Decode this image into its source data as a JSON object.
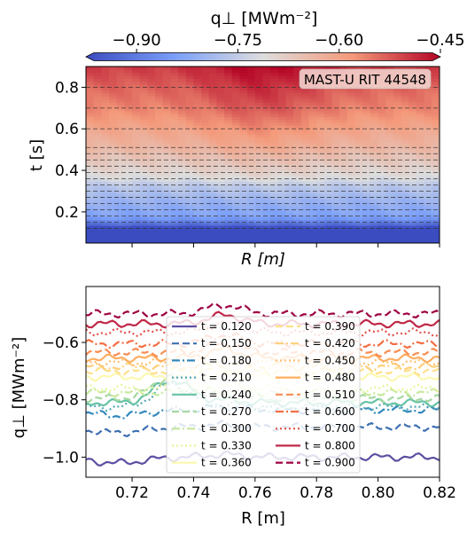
{
  "colorbar": {
    "label": "q⊥ [MWm⁻²]",
    "ticks": [
      "−0.90",
      "−0.75",
      "−0.60",
      "−0.45"
    ],
    "tick_values": [
      -0.9,
      -0.75,
      -0.6,
      -0.45
    ],
    "range": [
      -0.975,
      -0.45
    ],
    "colormap": "coolwarm",
    "extend": "both"
  },
  "chart_data": [
    {
      "type": "heatmap",
      "annotation": "MAST-U RIT 44548",
      "xlabel": "R [m]",
      "ylabel": "t [s]",
      "xlim": [
        0.705,
        0.82
      ],
      "ylim": [
        0.05,
        0.9
      ],
      "yticks": [
        0.2,
        0.4,
        0.6,
        0.8
      ],
      "ytick_labels": [
        "0.2",
        "0.4",
        "0.6",
        "0.8"
      ],
      "xticks": [
        0.72,
        0.74,
        0.76,
        0.78,
        0.8,
        0.82
      ],
      "dashed_time_lines": [
        0.12,
        0.15,
        0.18,
        0.21,
        0.24,
        0.27,
        0.3,
        0.33,
        0.36,
        0.39,
        0.42,
        0.45,
        0.48,
        0.51,
        0.6,
        0.7,
        0.8,
        0.9
      ]
    },
    {
      "type": "line",
      "xlabel": "R [m]",
      "ylabel": "q⊥ [MWm⁻²]",
      "xlim": [
        0.705,
        0.82
      ],
      "ylim": [
        -1.07,
        -0.405
      ],
      "xticks": [
        0.72,
        0.74,
        0.76,
        0.78,
        0.8,
        0.82
      ],
      "xtick_labels": [
        "0.72",
        "0.74",
        "0.76",
        "0.78",
        "0.80",
        "0.82"
      ],
      "yticks": [
        -1.0,
        -0.8,
        -0.6
      ],
      "ytick_labels": [
        "−1.0",
        "−0.8",
        "−0.6"
      ],
      "legend_position": "lower-center",
      "series": [
        {
          "name": "t = 0.120",
          "t": 0.12,
          "color": "#5e4fa2",
          "dash": "solid",
          "base": -1.0
        },
        {
          "name": "t = 0.150",
          "t": 0.15,
          "color": "#3d6fb0",
          "dash": "dashed",
          "base": -0.895
        },
        {
          "name": "t = 0.180",
          "t": 0.18,
          "color": "#3288bd",
          "dash": "dashdot",
          "base": -0.835
        },
        {
          "name": "t = 0.210",
          "t": 0.21,
          "color": "#55a7b4",
          "dash": "dotted",
          "base": -0.825
        },
        {
          "name": "t = 0.240",
          "t": 0.24,
          "color": "#66c2a5",
          "dash": "solid",
          "base": -0.81
        },
        {
          "name": "t = 0.270",
          "t": 0.27,
          "color": "#a4d8a1",
          "dash": "dashed",
          "base": -0.795
        },
        {
          "name": "t = 0.300",
          "t": 0.3,
          "color": "#c6e89b",
          "dash": "dashdot",
          "base": -0.775
        },
        {
          "name": "t = 0.330",
          "t": 0.33,
          "color": "#e6f598",
          "dash": "dotted",
          "base": -0.76
        },
        {
          "name": "t = 0.360",
          "t": 0.36,
          "color": "#fbf8b0",
          "dash": "solid",
          "base": -0.72
        },
        {
          "name": "t = 0.390",
          "t": 0.39,
          "color": "#fee08b",
          "dash": "dashed",
          "base": -0.7
        },
        {
          "name": "t = 0.420",
          "t": 0.42,
          "color": "#fdd07a",
          "dash": "dashdot",
          "base": -0.685
        },
        {
          "name": "t = 0.450",
          "t": 0.45,
          "color": "#fdbf6f",
          "dash": "dotted",
          "base": -0.67
        },
        {
          "name": "t = 0.480",
          "t": 0.48,
          "color": "#fdae61",
          "dash": "solid",
          "base": -0.655
        },
        {
          "name": "t = 0.510",
          "t": 0.51,
          "color": "#f88d52",
          "dash": "dashed",
          "base": -0.635
        },
        {
          "name": "t = 0.600",
          "t": 0.6,
          "color": "#f46d43",
          "dash": "dashdot",
          "base": -0.605
        },
        {
          "name": "t = 0.700",
          "t": 0.7,
          "color": "#e0504a",
          "dash": "dotted",
          "base": -0.565
        },
        {
          "name": "t = 0.800",
          "t": 0.8,
          "color": "#c02848",
          "dash": "solid",
          "base": -0.535
        },
        {
          "name": "t = 0.900",
          "t": 0.9,
          "color": "#9e0142",
          "dash": "dashed",
          "base": -0.5
        }
      ]
    }
  ]
}
